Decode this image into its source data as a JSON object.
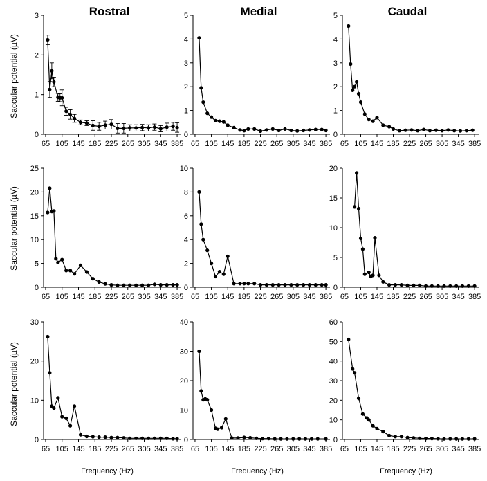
{
  "figure": {
    "column_titles": [
      "Rostral",
      "Medial",
      "Caudal"
    ],
    "ylabel": "Saccular potential (µV)",
    "xlabel": "Frequency (Hz)"
  },
  "chart_data": [
    {
      "type": "line",
      "row": 0,
      "col": 0,
      "title": "Rostral",
      "ylabel": "Saccular potential (µV)",
      "xlabel": "",
      "xlim": [
        60,
        395
      ],
      "ylim": [
        0,
        3
      ],
      "xticks": [
        65,
        105,
        145,
        185,
        225,
        265,
        305,
        345,
        385
      ],
      "yticks": [
        0,
        1,
        2,
        3
      ],
      "grid": false,
      "series": [
        {
          "x": [
            70,
            75,
            80,
            85,
            95,
            100,
            105,
            115,
            125,
            135,
            150,
            165,
            180,
            195,
            210,
            225,
            240,
            255,
            270,
            285,
            300,
            315,
            330,
            345,
            360,
            375,
            385
          ],
          "y": [
            2.38,
            1.13,
            1.6,
            1.32,
            0.93,
            0.92,
            0.92,
            0.58,
            0.5,
            0.4,
            0.3,
            0.28,
            0.22,
            0.2,
            0.23,
            0.25,
            0.15,
            0.15,
            0.16,
            0.16,
            0.17,
            0.16,
            0.18,
            0.14,
            0.18,
            0.2,
            0.17
          ],
          "err": [
            0.12,
            0.2,
            0.2,
            0.12,
            0.1,
            0.1,
            0.2,
            0.1,
            0.12,
            0.1,
            0.06,
            0.06,
            0.12,
            0.1,
            0.1,
            0.12,
            0.12,
            0.12,
            0.08,
            0.08,
            0.08,
            0.08,
            0.08,
            0.08,
            0.1,
            0.1,
            0.12
          ]
        }
      ]
    },
    {
      "type": "line",
      "row": 0,
      "col": 1,
      "title": "Medial",
      "ylabel": "",
      "xlabel": "",
      "xlim": [
        60,
        395
      ],
      "ylim": [
        0,
        5
      ],
      "xticks": [
        65,
        105,
        145,
        185,
        225,
        265,
        305,
        345,
        385
      ],
      "yticks": [
        0,
        1,
        2,
        3,
        4,
        5
      ],
      "grid": false,
      "series": [
        {
          "x": [
            75,
            80,
            85,
            95,
            105,
            115,
            125,
            135,
            145,
            160,
            175,
            185,
            195,
            210,
            225,
            240,
            255,
            270,
            285,
            300,
            315,
            330,
            345,
            360,
            375,
            385
          ],
          "y": [
            4.05,
            1.95,
            1.35,
            0.88,
            0.72,
            0.57,
            0.55,
            0.52,
            0.38,
            0.28,
            0.18,
            0.15,
            0.22,
            0.22,
            0.13,
            0.18,
            0.22,
            0.16,
            0.22,
            0.16,
            0.14,
            0.16,
            0.18,
            0.2,
            0.2,
            0.16
          ]
        }
      ]
    },
    {
      "type": "line",
      "row": 0,
      "col": 2,
      "title": "Caudal",
      "ylabel": "",
      "xlabel": "",
      "xlim": [
        60,
        395
      ],
      "ylim": [
        0,
        5
      ],
      "xticks": [
        65,
        105,
        145,
        185,
        225,
        265,
        305,
        345,
        385
      ],
      "yticks": [
        0,
        1,
        2,
        3,
        4,
        5
      ],
      "grid": false,
      "series": [
        {
          "x": [
            75,
            80,
            85,
            90,
            95,
            100,
            105,
            115,
            125,
            135,
            145,
            160,
            175,
            185,
            200,
            215,
            230,
            245,
            260,
            275,
            290,
            305,
            320,
            335,
            350,
            365,
            380
          ],
          "y": [
            4.55,
            2.95,
            1.85,
            2.0,
            2.2,
            1.7,
            1.35,
            0.85,
            0.62,
            0.55,
            0.7,
            0.38,
            0.32,
            0.22,
            0.15,
            0.17,
            0.18,
            0.15,
            0.2,
            0.15,
            0.17,
            0.15,
            0.18,
            0.15,
            0.14,
            0.15,
            0.17
          ]
        }
      ]
    },
    {
      "type": "line",
      "row": 1,
      "col": 0,
      "title": "",
      "ylabel": "Saccular potential (µV)",
      "xlabel": "",
      "xlim": [
        60,
        395
      ],
      "ylim": [
        0,
        25
      ],
      "xticks": [
        65,
        105,
        145,
        185,
        225,
        265,
        305,
        345,
        385
      ],
      "yticks": [
        0,
        5,
        10,
        15,
        20,
        25
      ],
      "grid": false,
      "series": [
        {
          "x": [
            70,
            75,
            80,
            85,
            90,
            95,
            105,
            115,
            125,
            135,
            150,
            165,
            180,
            195,
            210,
            225,
            240,
            255,
            270,
            285,
            300,
            315,
            330,
            345,
            360,
            375,
            385
          ],
          "y": [
            15.7,
            20.8,
            15.9,
            16.0,
            6.0,
            5.2,
            5.8,
            3.5,
            3.5,
            2.8,
            4.6,
            3.2,
            1.8,
            1.1,
            0.7,
            0.5,
            0.4,
            0.4,
            0.4,
            0.4,
            0.4,
            0.4,
            0.6,
            0.5,
            0.5,
            0.5,
            0.5
          ]
        }
      ]
    },
    {
      "type": "line",
      "row": 1,
      "col": 1,
      "title": "",
      "ylabel": "",
      "xlabel": "",
      "xlim": [
        60,
        395
      ],
      "ylim": [
        0,
        10
      ],
      "xticks": [
        65,
        105,
        145,
        185,
        225,
        265,
        305,
        345,
        385
      ],
      "yticks": [
        0,
        2,
        4,
        6,
        8,
        10
      ],
      "grid": false,
      "series": [
        {
          "x": [
            75,
            80,
            85,
            95,
            105,
            115,
            125,
            135,
            145,
            160,
            175,
            185,
            195,
            210,
            225,
            240,
            255,
            270,
            285,
            300,
            315,
            330,
            345,
            360,
            375,
            385
          ],
          "y": [
            8.0,
            5.3,
            4.0,
            3.1,
            2.0,
            0.9,
            1.3,
            1.1,
            2.6,
            0.3,
            0.3,
            0.3,
            0.3,
            0.3,
            0.2,
            0.2,
            0.2,
            0.2,
            0.2,
            0.2,
            0.2,
            0.2,
            0.2,
            0.2,
            0.2,
            0.2
          ]
        }
      ]
    },
    {
      "type": "line",
      "row": 1,
      "col": 2,
      "title": "",
      "ylabel": "",
      "xlabel": "",
      "xlim": [
        60,
        395
      ],
      "ylim": [
        0,
        20
      ],
      "xticks": [
        65,
        105,
        145,
        185,
        225,
        265,
        305,
        345,
        385
      ],
      "yticks": [
        0,
        5,
        10,
        15,
        20
      ],
      "grid": false,
      "series": [
        {
          "x": [
            90,
            95,
            100,
            105,
            110,
            115,
            125,
            130,
            135,
            140,
            150,
            160,
            175,
            190,
            205,
            220,
            235,
            250,
            265,
            280,
            295,
            310,
            325,
            340,
            355,
            370,
            385
          ],
          "y": [
            13.5,
            19.2,
            13.2,
            8.2,
            6.4,
            2.2,
            2.5,
            1.8,
            2.0,
            8.3,
            2.0,
            0.9,
            0.4,
            0.4,
            0.4,
            0.3,
            0.3,
            0.3,
            0.2,
            0.2,
            0.2,
            0.2,
            0.2,
            0.2,
            0.2,
            0.2,
            0.2
          ]
        }
      ]
    },
    {
      "type": "line",
      "row": 2,
      "col": 0,
      "title": "",
      "ylabel": "Saccular potential (µV)",
      "xlabel": "Frequency (Hz)",
      "xlim": [
        60,
        395
      ],
      "ylim": [
        0,
        30
      ],
      "xticks": [
        65,
        105,
        145,
        185,
        225,
        265,
        305,
        345,
        385
      ],
      "yticks": [
        0,
        10,
        20,
        30
      ],
      "grid": false,
      "series": [
        {
          "x": [
            70,
            75,
            80,
            85,
            95,
            105,
            115,
            125,
            135,
            150,
            165,
            180,
            195,
            210,
            225,
            240,
            255,
            270,
            285,
            300,
            315,
            330,
            345,
            360,
            375,
            385
          ],
          "y": [
            26.2,
            17.0,
            8.5,
            8.0,
            10.6,
            5.8,
            5.4,
            3.5,
            8.5,
            1.2,
            0.8,
            0.7,
            0.6,
            0.6,
            0.5,
            0.5,
            0.4,
            0.3,
            0.3,
            0.3,
            0.3,
            0.3,
            0.3,
            0.3,
            0.2,
            0.2
          ]
        }
      ]
    },
    {
      "type": "line",
      "row": 2,
      "col": 1,
      "title": "",
      "ylabel": "",
      "xlabel": "Frequency (Hz)",
      "xlim": [
        60,
        395
      ],
      "ylim": [
        0,
        40
      ],
      "xticks": [
        65,
        105,
        145,
        185,
        225,
        265,
        305,
        345,
        385
      ],
      "yticks": [
        0,
        10,
        20,
        30,
        40
      ],
      "grid": false,
      "series": [
        {
          "x": [
            75,
            80,
            85,
            90,
            95,
            105,
            115,
            120,
            130,
            140,
            155,
            170,
            185,
            200,
            215,
            230,
            245,
            260,
            275,
            290,
            305,
            320,
            335,
            350,
            365,
            385
          ],
          "y": [
            30.0,
            16.5,
            13.5,
            13.8,
            13.5,
            10.0,
            3.8,
            3.5,
            4.0,
            7.0,
            0.5,
            0.5,
            0.7,
            0.6,
            0.4,
            0.3,
            0.3,
            0.2,
            0.2,
            0.2,
            0.2,
            0.2,
            0.2,
            0.2,
            0.2,
            0.2
          ]
        }
      ]
    },
    {
      "type": "line",
      "row": 2,
      "col": 2,
      "title": "",
      "ylabel": "",
      "xlabel": "Frequency (Hz)",
      "xlim": [
        60,
        395
      ],
      "ylim": [
        0,
        60
      ],
      "xticks": [
        65,
        105,
        145,
        185,
        225,
        265,
        305,
        345,
        385
      ],
      "yticks": [
        0,
        10,
        20,
        30,
        40,
        50,
        60
      ],
      "grid": false,
      "series": [
        {
          "x": [
            75,
            85,
            90,
            100,
            110,
            120,
            125,
            135,
            145,
            160,
            175,
            190,
            205,
            220,
            235,
            250,
            265,
            280,
            295,
            310,
            325,
            340,
            355,
            370,
            385
          ],
          "y": [
            51.0,
            36.0,
            34.0,
            21.0,
            13.0,
            11.0,
            10.0,
            7.0,
            5.5,
            4.0,
            2.0,
            1.5,
            1.5,
            1.0,
            0.8,
            0.6,
            0.5,
            0.5,
            0.4,
            0.3,
            0.3,
            0.3,
            0.3,
            0.3,
            0.3
          ]
        }
      ]
    }
  ]
}
